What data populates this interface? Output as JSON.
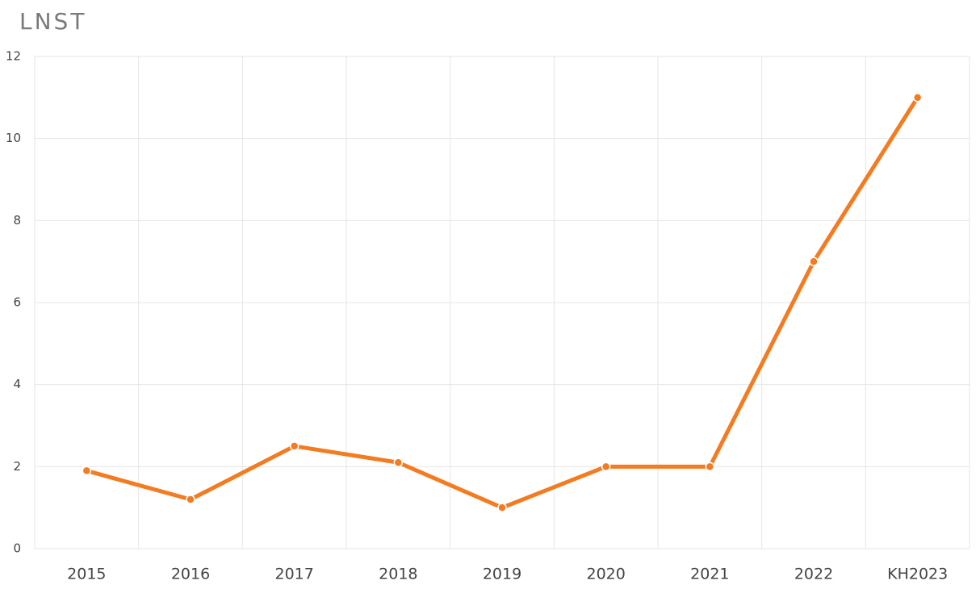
{
  "chart_data": {
    "type": "line",
    "title": "LNST",
    "categories": [
      "2015",
      "2016",
      "2017",
      "2018",
      "2019",
      "2020",
      "2021",
      "2022",
      "KH2023"
    ],
    "values": [
      1.9,
      1.2,
      2.5,
      2.1,
      1.0,
      2.0,
      2.0,
      7.0,
      11.0
    ],
    "color": "#f47b20",
    "ylim": [
      0,
      12
    ],
    "yticks": [
      0,
      2,
      4,
      6,
      8,
      10,
      12
    ],
    "grid": true
  }
}
